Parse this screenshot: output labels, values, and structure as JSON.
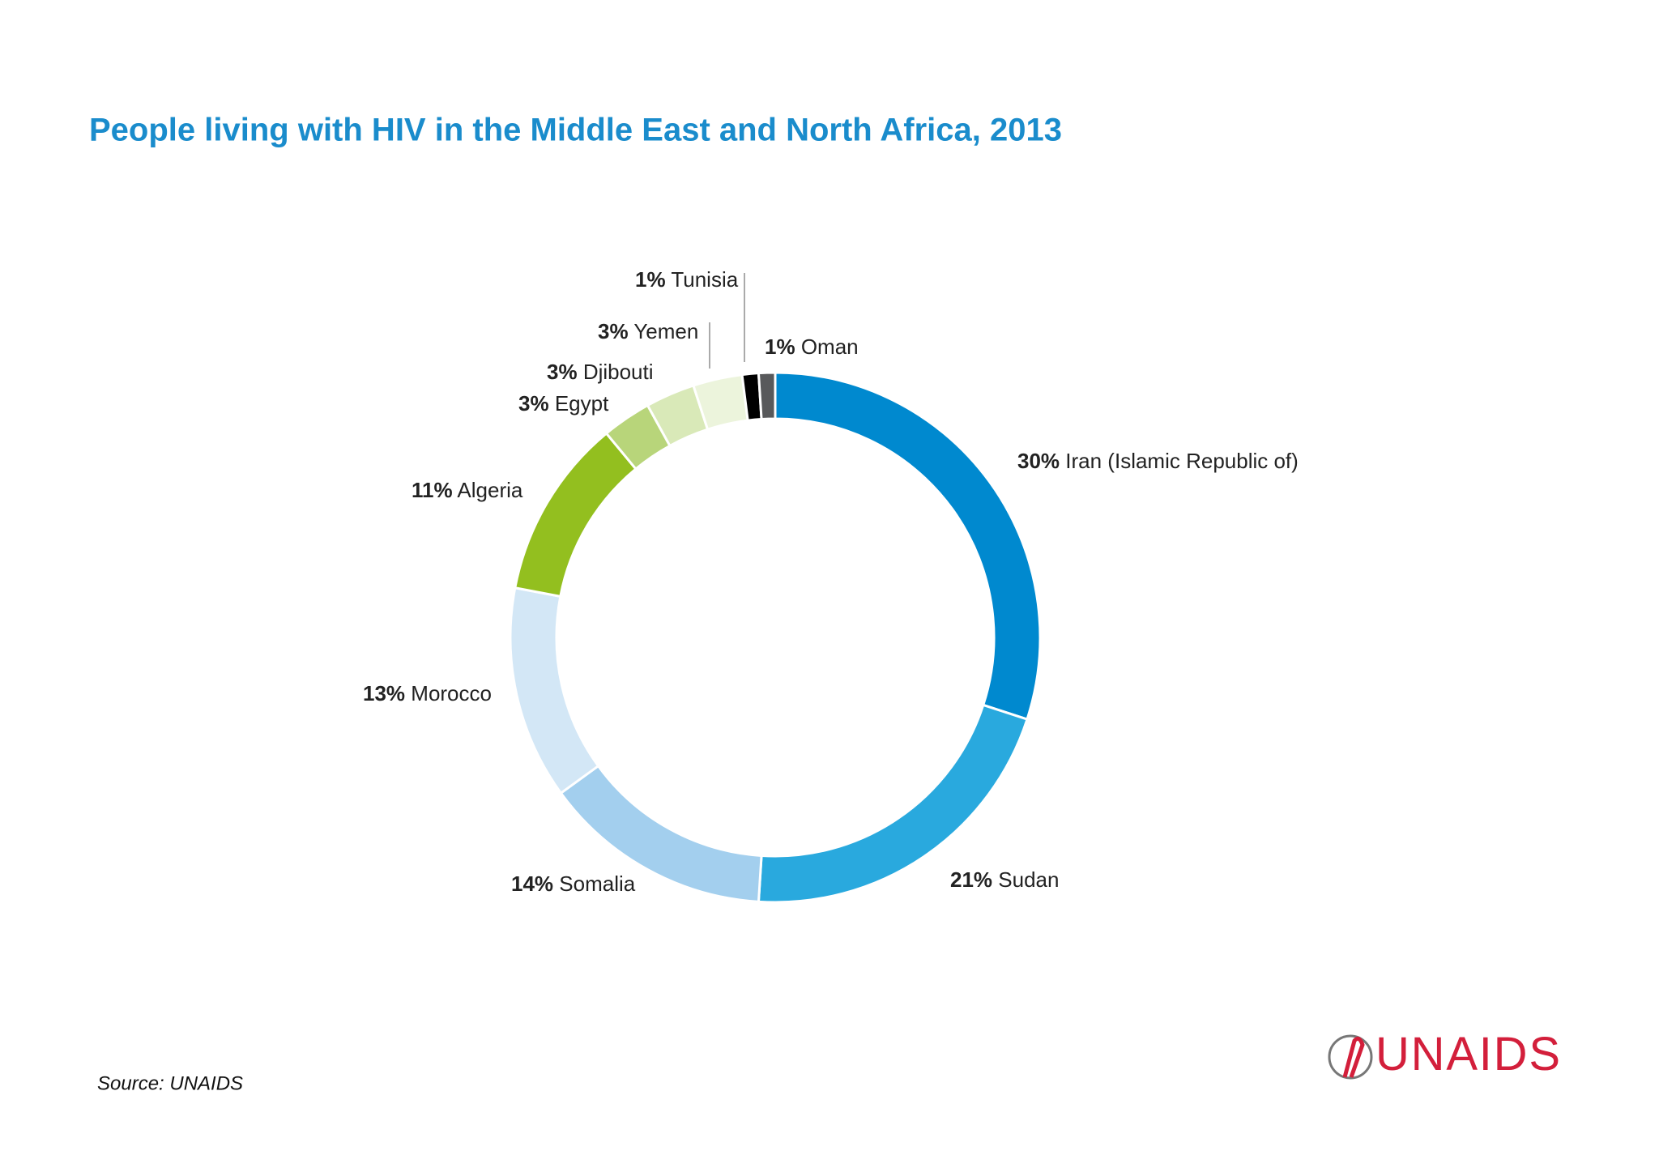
{
  "chart_data": {
    "type": "donut",
    "title": "People living with HIV in the Middle East and North Africa, 2013",
    "categories": [
      "Iran (Islamic Republic of)",
      "Sudan",
      "Somalia",
      "Morocco",
      "Algeria",
      "Egypt",
      "Djibouti",
      "Yemen",
      "Tunisia",
      "Oman"
    ],
    "values": [
      30,
      21,
      14,
      13,
      11,
      3,
      3,
      3,
      1,
      1
    ],
    "value_labels": [
      "30%",
      "21%",
      "14%",
      "13%",
      "11%",
      "3%",
      "3%",
      "3%",
      "1%",
      "1%"
    ],
    "colors": [
      "#0089cf",
      "#29a9de",
      "#a3cfee",
      "#d3e7f6",
      "#93bf1f",
      "#b8d57a",
      "#d9e9b8",
      "#ecf4dc",
      "#000000",
      "#58595b"
    ],
    "source": "Source: UNAIDS",
    "logo": "UNAIDS"
  }
}
